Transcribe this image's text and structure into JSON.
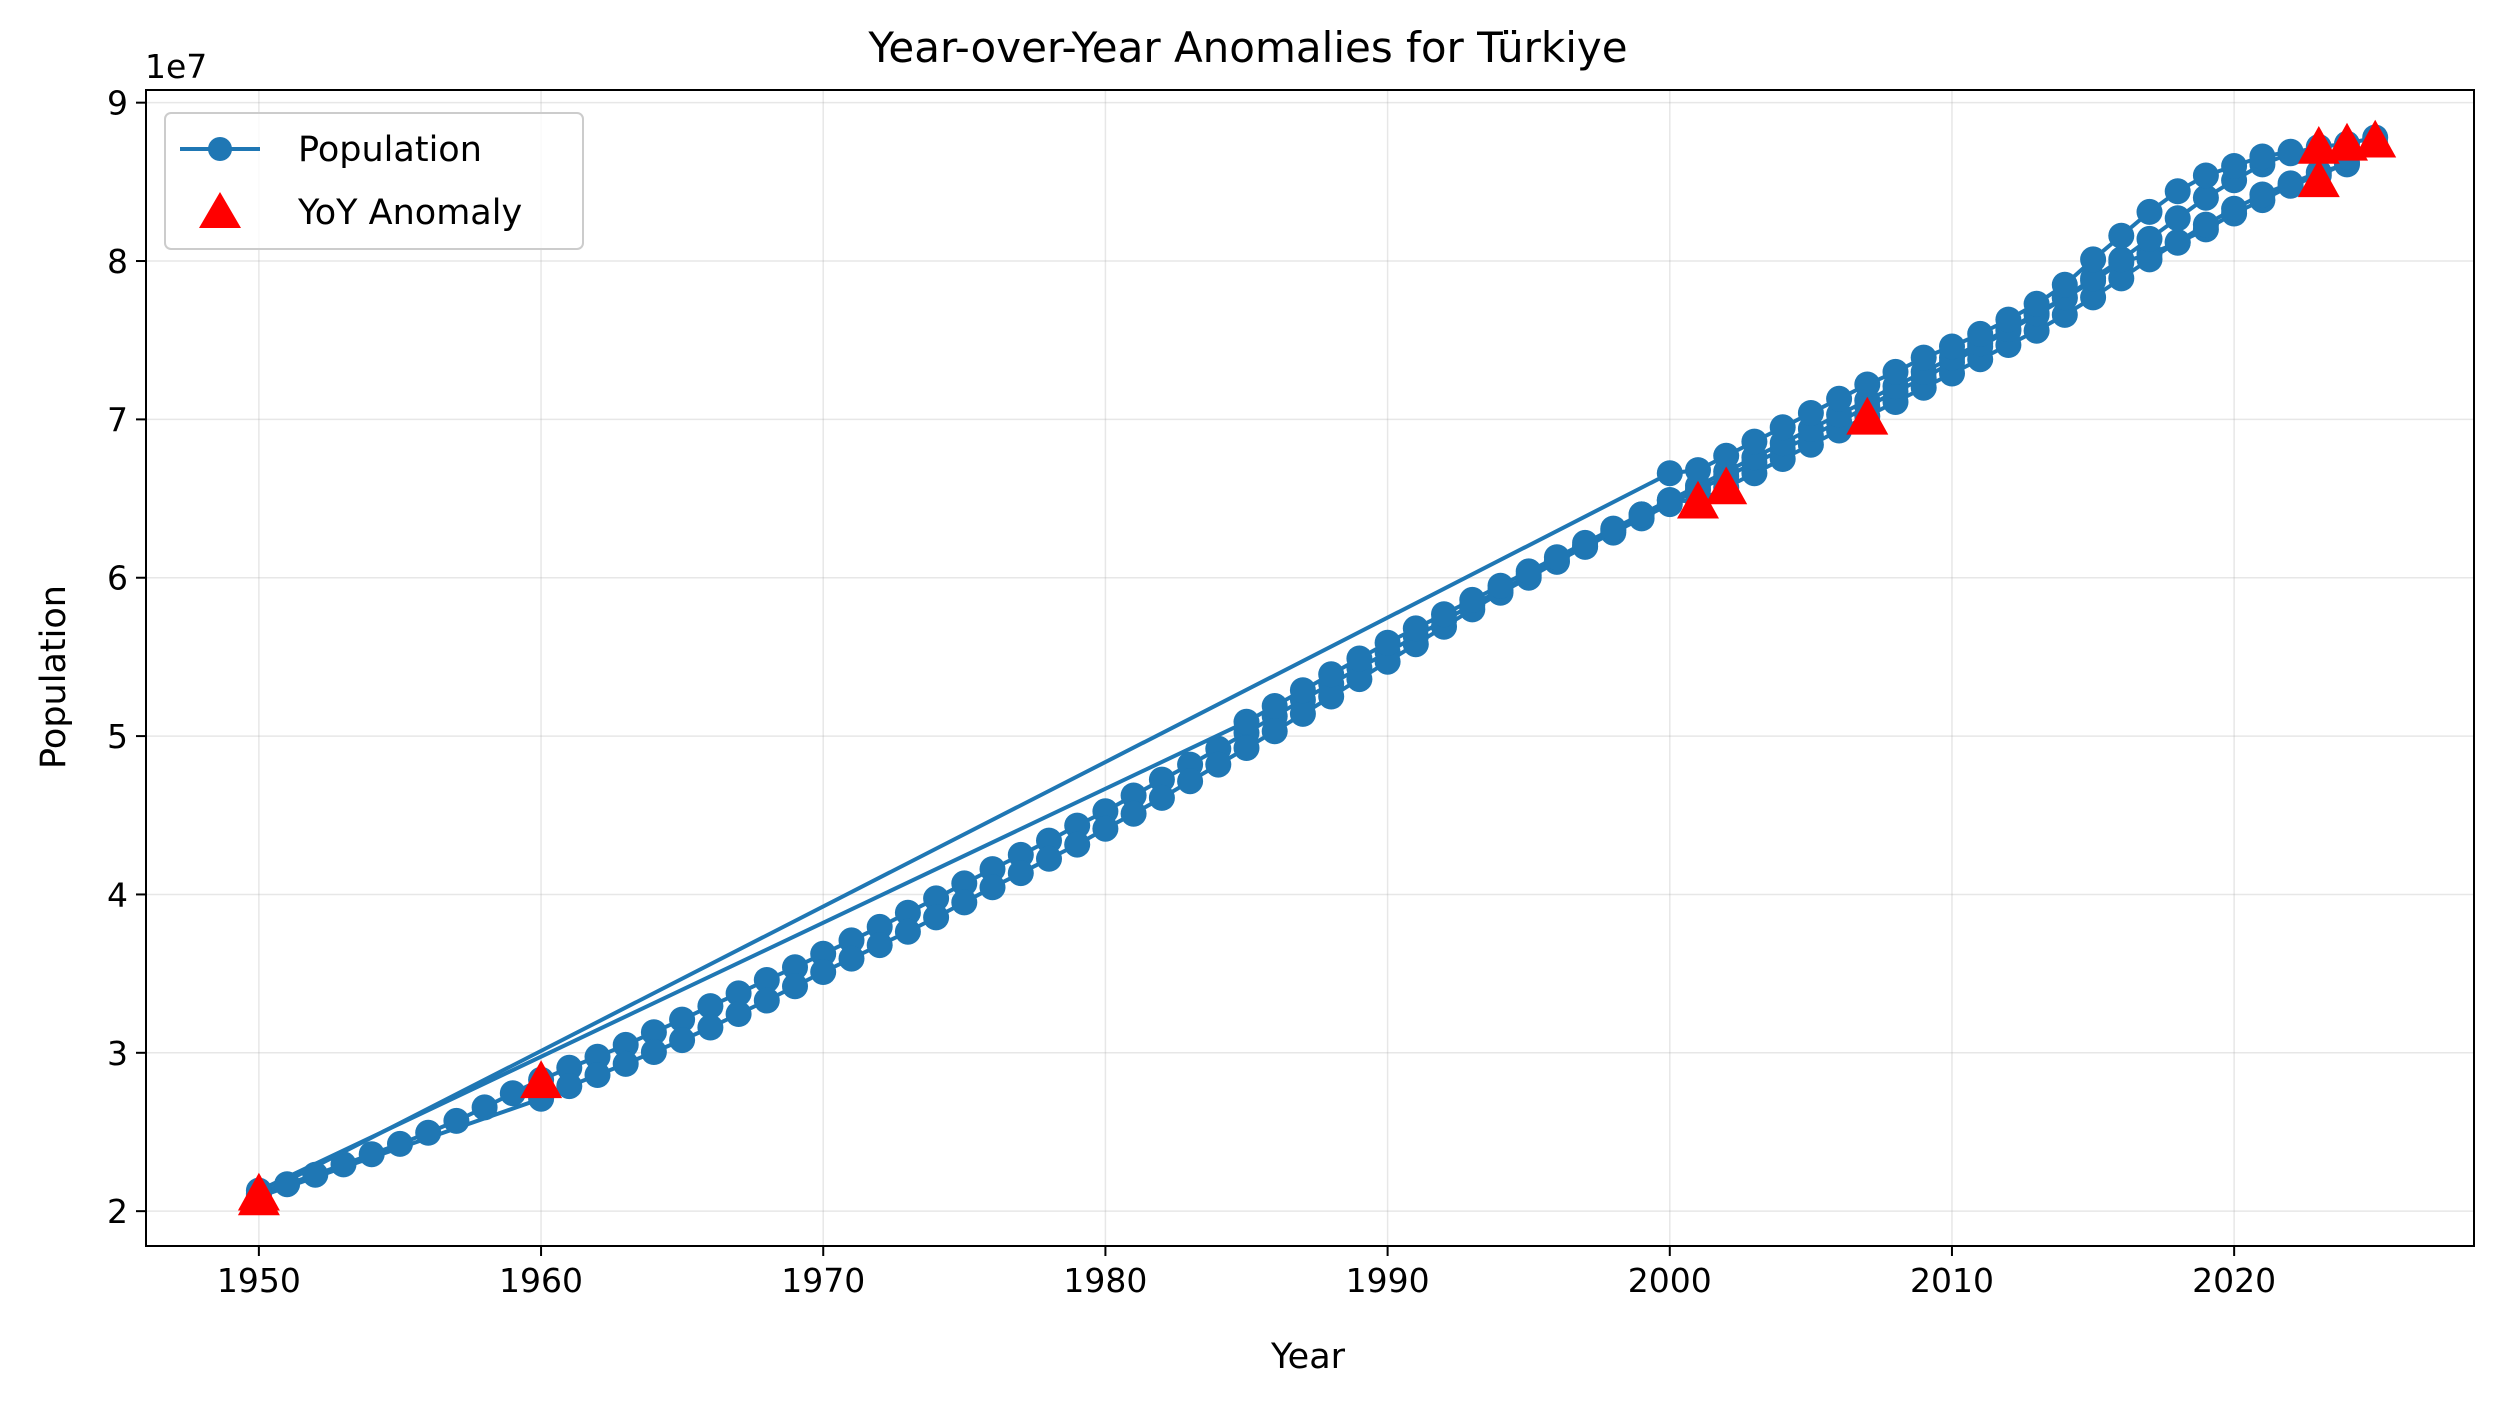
{
  "chart_data": {
    "type": "line",
    "title": "Year-over-Year Anomalies for Türkiye",
    "xlabel": "Year",
    "ylabel": "Population",
    "y_offset_label": "1e7",
    "xlim": [
      1946,
      2028.5
    ],
    "ylim": [
      17800000,
      90800000
    ],
    "x_ticks": [
      1950,
      1960,
      1970,
      1980,
      1990,
      2000,
      2010,
      2020
    ],
    "x_tick_labels": [
      "1950",
      "1960",
      "1970",
      "1980",
      "1990",
      "2000",
      "2010",
      "2020"
    ],
    "y_ticks": [
      20000000,
      30000000,
      40000000,
      50000000,
      60000000,
      70000000,
      80000000,
      90000000
    ],
    "y_tick_labels": [
      "2",
      "3",
      "4",
      "5",
      "6",
      "7",
      "8",
      "9"
    ],
    "grid": true,
    "legend_position": "top-left",
    "colors": {
      "line": "#1f77b4",
      "anomaly": "#ff0000"
    },
    "series": [
      {
        "name": "Population",
        "segments": [
          {
            "x": [
              1950,
              1951,
              1952,
              1953,
              1954,
              1955,
              1956,
              1957,
              1958,
              1959,
              1960,
              1961,
              1962,
              1963,
              1964,
              1965,
              1966,
              1967,
              1968,
              1969,
              1970,
              1971,
              1972,
              1973,
              1974,
              1975,
              1976,
              1977,
              1978,
              1979,
              1980,
              1981,
              1982,
              1983,
              1984,
              1985,
              1986,
              1987,
              1988,
              1989,
              1990,
              1991,
              1992,
              1993,
              1994,
              1995,
              1996,
              1997,
              1998,
              1999,
              2000,
              2001,
              2002,
              2003,
              2004,
              2005,
              2006,
              2007,
              2008,
              2009,
              2010,
              2011,
              2012,
              2013,
              2014,
              2015,
              2016,
              2017,
              2018,
              2019,
              2020,
              2021,
              2022,
              2023,
              2024,
              2025
            ],
            "y": [
              21100000,
              21700000,
              22300000,
              22950000,
              23600000,
              24250000,
              24950000,
              25700000,
              26550000,
              27450000,
              28300000,
              29050000,
              29750000,
              30500000,
              31300000,
              32100000,
              32950000,
              33750000,
              34600000,
              35400000,
              36250000,
              37100000,
              37950000,
              38850000,
              39750000,
              40700000,
              41600000,
              42500000,
              43400000,
              44350000,
              45250000,
              46250000,
              47250000,
              48200000,
              49200000,
              50200000,
              51250000,
              52300000,
              53300000,
              54300000,
              55300000,
              56300000,
              57300000,
              58300000,
              59200000,
              60150000,
              61050000,
              61950000,
              62850000,
              63750000,
              64650000,
              65550000,
              66400000,
              67250000,
              68100000,
              68950000,
              69850000,
              70800000,
              71750000,
              72600000,
              73600000,
              74600000,
              75600000,
              76600000,
              77650000,
              78750000,
              79900000,
              80450000,
              81150000,
              82000000,
              83000000,
              83850000,
              84750000,
              85400000,
              86200000,
              87400000
            ]
          },
          {
            "x": [
              1950,
              1960,
              1961,
              1962,
              1963,
              1964,
              1965,
              1966,
              1967,
              1968,
              1969,
              1970,
              1971,
              1972,
              1973,
              1974,
              1975,
              1976,
              1977,
              1978,
              1979,
              1980,
              1981,
              1982,
              1983,
              1984,
              1985,
              1986,
              1987,
              1988,
              1989,
              1990,
              1991,
              1992,
              1993,
              1994,
              1995,
              1996,
              1997,
              1998,
              1999,
              2000,
              2001,
              2002,
              2003,
              2004,
              2005,
              2006,
              2007,
              2008,
              2009,
              2010,
              2011,
              2012,
              2013,
              2014,
              2015,
              2016,
              2017,
              2018,
              2019,
              2020,
              2021,
              2022,
              2023,
              2024
            ],
            "y": [
              20900000,
              27100000,
              27900000,
              28600000,
              29300000,
              30050000,
              30800000,
              31600000,
              32450000,
              33300000,
              34200000,
              35100000,
              35950000,
              36800000,
              37650000,
              38550000,
              39500000,
              40450000,
              41350000,
              42250000,
              43150000,
              44150000,
              45100000,
              46100000,
              47150000,
              48200000,
              49250000,
              50300000,
              51400000,
              52500000,
              53600000,
              54700000,
              55800000,
              56900000,
              58000000,
              59050000,
              60000000,
              61000000,
              62000000,
              63000000,
              64000000,
              64900000,
              64800000,
              65700000,
              66600000,
              67500000,
              68400000,
              69300000,
              70200000,
              71100000,
              72000000,
              72900000,
              73800000,
              74700000,
              75600000,
              76600000,
              77700000,
              78900000,
              80100000,
              81200000,
              82300000,
              83300000,
              84200000,
              84900000,
              85600000,
              86100000
            ]
          },
          {
            "x": [
              1950,
              1985,
              1986,
              1987,
              1988,
              1989,
              1990,
              1991,
              1992,
              1993,
              1994,
              1995,
              1996,
              1997,
              1998,
              1999,
              2000,
              2001,
              2002,
              2003,
              2004,
              2005,
              2006,
              2007,
              2008,
              2009,
              2010,
              2011,
              2012,
              2013,
              2014,
              2015,
              2016,
              2017,
              2018,
              2019,
              2020,
              2021,
              2022,
              2023,
              2024,
              2025
            ],
            "y": [
              21300000,
              50900000,
              51900000,
              52900000,
              53900000,
              54900000,
              55900000,
              56800000,
              57700000,
              58600000,
              59500000,
              60400000,
              61300000,
              62200000,
              63100000,
              64000000,
              64900000,
              65800000,
              66700000,
              67600000,
              68500000,
              69400000,
              70300000,
              71200000,
              72100000,
              73000000,
              73900000,
              74800000,
              75700000,
              76700000,
              77700000,
              78900000,
              80100000,
              81400000,
              82700000,
              84000000,
              85100000,
              86100000,
              86800000,
              87200000,
              87400000,
              87800000
            ]
          },
          {
            "x": [
              1950,
              2000,
              2001,
              2002,
              2003,
              2004,
              2005,
              2006,
              2007,
              2008,
              2009,
              2010,
              2011,
              2012,
              2013,
              2014,
              2015,
              2016,
              2017,
              2018,
              2019,
              2020,
              2021,
              2022,
              2023,
              2024
            ],
            "y": [
              21000000,
              66600000,
              66800000,
              67700000,
              68600000,
              69500000,
              70400000,
              71300000,
              72200000,
              73000000,
              73900000,
              74600000,
              75400000,
              76300000,
              77300000,
              78500000,
              80100000,
              81600000,
              83100000,
              84400000,
              85400000,
              86000000,
              86600000,
              86900000,
              86800000,
              86600000
            ]
          }
        ]
      },
      {
        "name": "YoY Anomaly",
        "x": [
          1950,
          1950,
          1960,
          2001,
          2002,
          2007,
          2023,
          2023,
          2024,
          2025
        ],
        "y": [
          20800000,
          21100000,
          28200000,
          64800000,
          65700000,
          70100000,
          85100000,
          87200000,
          87400000,
          87600000
        ]
      }
    ]
  }
}
